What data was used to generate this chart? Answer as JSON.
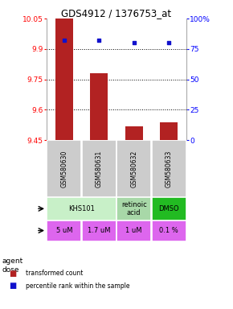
{
  "title": "GDS4912 / 1376753_at",
  "samples": [
    "GSM580630",
    "GSM580631",
    "GSM580632",
    "GSM580633"
  ],
  "bar_values": [
    10.05,
    9.78,
    9.52,
    9.54
  ],
  "bar_base": 9.45,
  "percentile_values": [
    82,
    82,
    80,
    80
  ],
  "ylim_left": [
    9.45,
    10.05
  ],
  "ylim_right": [
    0,
    100
  ],
  "yticks_left": [
    9.45,
    9.6,
    9.75,
    9.9,
    10.05
  ],
  "yticks_right": [
    0,
    25,
    50,
    75,
    100
  ],
  "ytick_labels_right": [
    "0",
    "25",
    "50",
    "75",
    "100%"
  ],
  "hlines": [
    9.9,
    9.75,
    9.6
  ],
  "bar_color": "#b22222",
  "dot_color": "#1111cc",
  "agent_info": [
    [
      0,
      1,
      "KHS101",
      "#c8f0c8"
    ],
    [
      2,
      2,
      "retinoic\nacid",
      "#a8d8a8"
    ],
    [
      3,
      3,
      "DMSO",
      "#22bb22"
    ]
  ],
  "dose_labels": [
    "5 uM",
    "1.7 uM",
    "1 uM",
    "0.1 %"
  ],
  "dose_color": "#dd66ee",
  "sample_row_color": "#cccccc",
  "bar_width": 0.5
}
